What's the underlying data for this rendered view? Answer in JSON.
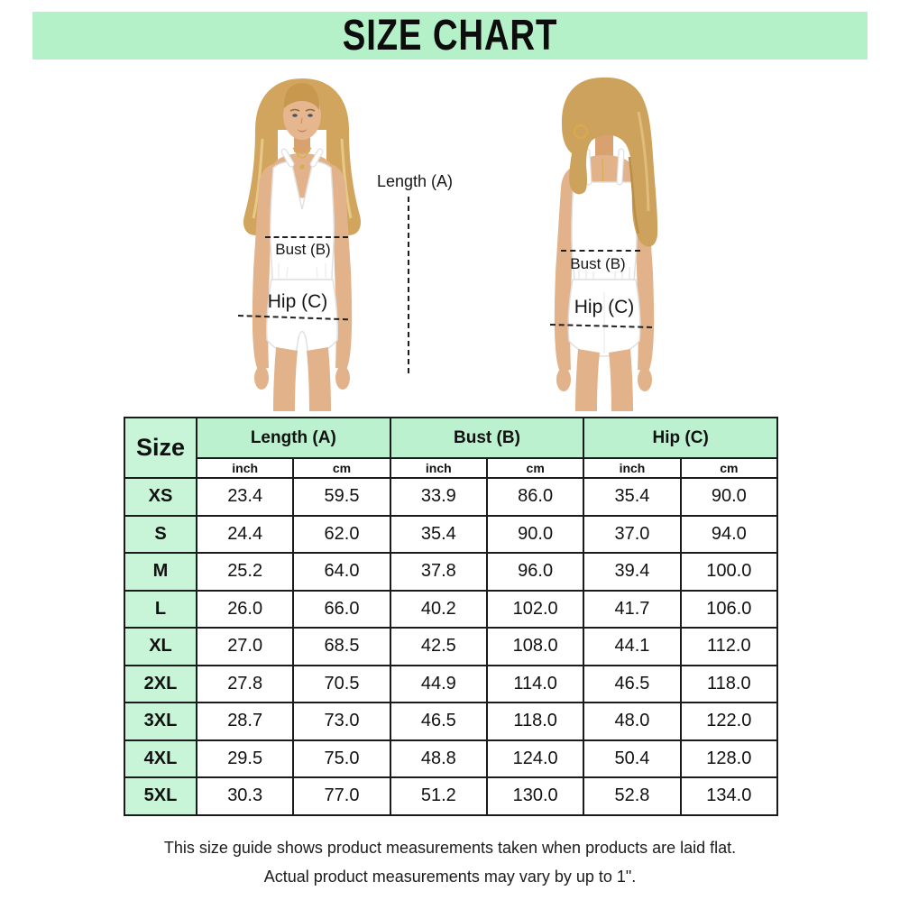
{
  "title": "SIZE CHART",
  "colors": {
    "banner_green": "#b4f0c8",
    "table_header_green": "#bcf1cf",
    "size_column_green": "#c8f4d8",
    "table_border": "#1b1b1b",
    "text": "#111111"
  },
  "figures": {
    "front": {
      "length_label": "Length (A)",
      "bust_label": "Bust (B)",
      "hip_label": "Hip (C)"
    },
    "back": {
      "bust_label": "Bust (B)",
      "hip_label": "Hip (C)"
    }
  },
  "table": {
    "size_header": "Size",
    "group_headers": [
      "Length (A)",
      "Bust (B)",
      "Hip (C)"
    ],
    "unit_headers": [
      "inch",
      "cm",
      "inch",
      "cm",
      "inch",
      "cm"
    ],
    "rows": [
      {
        "size": "XS",
        "values": [
          "23.4",
          "59.5",
          "33.9",
          "86.0",
          "35.4",
          "90.0"
        ]
      },
      {
        "size": "S",
        "values": [
          "24.4",
          "62.0",
          "35.4",
          "90.0",
          "37.0",
          "94.0"
        ]
      },
      {
        "size": "M",
        "values": [
          "25.2",
          "64.0",
          "37.8",
          "96.0",
          "39.4",
          "100.0"
        ]
      },
      {
        "size": "L",
        "values": [
          "26.0",
          "66.0",
          "40.2",
          "102.0",
          "41.7",
          "106.0"
        ]
      },
      {
        "size": "XL",
        "values": [
          "27.0",
          "68.5",
          "42.5",
          "108.0",
          "44.1",
          "112.0"
        ]
      },
      {
        "size": "2XL",
        "values": [
          "27.8",
          "70.5",
          "44.9",
          "114.0",
          "46.5",
          "118.0"
        ]
      },
      {
        "size": "3XL",
        "values": [
          "28.7",
          "73.0",
          "46.5",
          "118.0",
          "48.0",
          "122.0"
        ]
      },
      {
        "size": "4XL",
        "values": [
          "29.5",
          "75.0",
          "48.8",
          "124.0",
          "50.4",
          "128.0"
        ]
      },
      {
        "size": "5XL",
        "values": [
          "30.3",
          "77.0",
          "51.2",
          "130.0",
          "52.8",
          "134.0"
        ]
      }
    ]
  },
  "footer": {
    "line1": "This size guide shows product measurements taken when products are laid flat.",
    "line2": "Actual product measurements may vary by up to 1\"."
  }
}
